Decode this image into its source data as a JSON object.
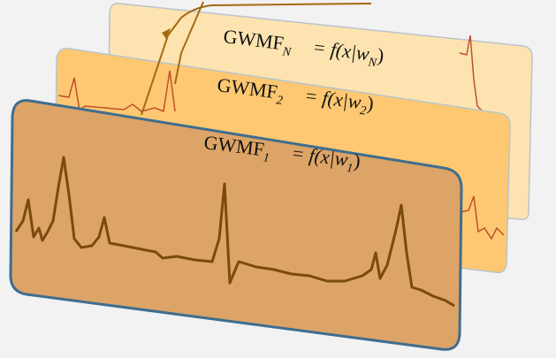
{
  "cards": [
    {
      "name": "GWMF",
      "name_sub": "N",
      "formula": "= f(x|w",
      "arg_sub": "N",
      "close": ")"
    },
    {
      "name": "GWMF",
      "name_sub": "2",
      "formula": "= f(x|w",
      "arg_sub": "2",
      "close": ")"
    },
    {
      "name": "GWMF",
      "name_sub": "1",
      "formula": "= f(x|w",
      "arg_sub": "1",
      "close": ")"
    }
  ]
}
